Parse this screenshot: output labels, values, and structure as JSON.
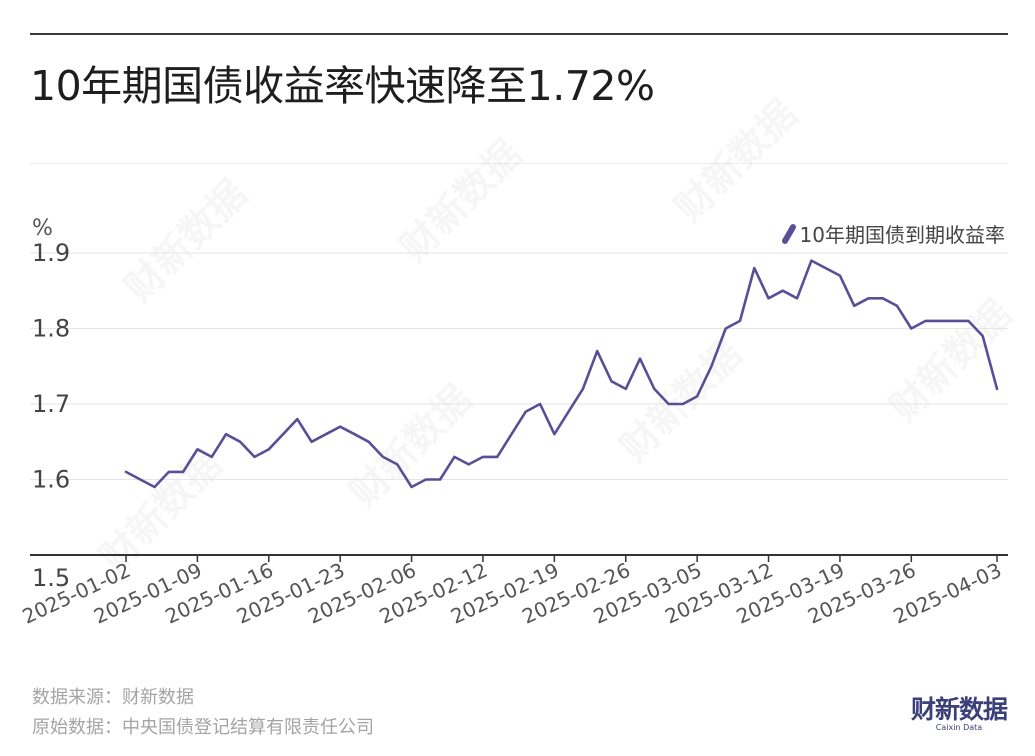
{
  "chart_data": {
    "type": "line",
    "title": "10年期国债收益率快速降至1.72%",
    "ylabel": "%",
    "xlabel": "",
    "ylim": [
      1.5,
      1.9
    ],
    "yticks": [
      1.5,
      1.6,
      1.7,
      1.8,
      1.9
    ],
    "grid": true,
    "legend_position": "top-right",
    "x_tick_labels": [
      "2025-01-02",
      "2025-01-09",
      "2025-01-16",
      "2025-01-23",
      "2025-02-06",
      "2025-02-12",
      "2025-02-19",
      "2025-02-26",
      "2025-03-05",
      "2025-03-12",
      "2025-03-19",
      "2025-03-26",
      "2025-04-03"
    ],
    "series": [
      {
        "name": "10年期国债到期收益率",
        "color": "#5a4e97",
        "x": [
          "2025-01-02",
          "2025-01-03",
          "2025-01-06",
          "2025-01-07",
          "2025-01-08",
          "2025-01-09",
          "2025-01-10",
          "2025-01-13",
          "2025-01-14",
          "2025-01-15",
          "2025-01-16",
          "2025-01-17",
          "2025-01-20",
          "2025-01-21",
          "2025-01-22",
          "2025-01-23",
          "2025-01-24",
          "2025-01-26",
          "2025-01-27",
          "2025-02-05",
          "2025-02-06",
          "2025-02-07",
          "2025-02-08",
          "2025-02-10",
          "2025-02-11",
          "2025-02-12",
          "2025-02-13",
          "2025-02-14",
          "2025-02-17",
          "2025-02-18",
          "2025-02-19",
          "2025-02-20",
          "2025-02-21",
          "2025-02-24",
          "2025-02-25",
          "2025-02-26",
          "2025-02-27",
          "2025-02-28",
          "2025-03-03",
          "2025-03-04",
          "2025-03-05",
          "2025-03-06",
          "2025-03-07",
          "2025-03-10",
          "2025-03-11",
          "2025-03-12",
          "2025-03-13",
          "2025-03-14",
          "2025-03-17",
          "2025-03-18",
          "2025-03-19",
          "2025-03-20",
          "2025-03-21",
          "2025-03-24",
          "2025-03-25",
          "2025-03-26",
          "2025-03-27",
          "2025-03-28",
          "2025-03-31",
          "2025-04-01",
          "2025-04-02",
          "2025-04-03"
        ],
        "values": [
          1.61,
          1.6,
          1.59,
          1.61,
          1.61,
          1.64,
          1.63,
          1.66,
          1.65,
          1.63,
          1.64,
          1.66,
          1.68,
          1.65,
          1.66,
          1.67,
          1.66,
          1.65,
          1.63,
          1.62,
          1.59,
          1.6,
          1.6,
          1.63,
          1.62,
          1.63,
          1.63,
          1.66,
          1.69,
          1.7,
          1.66,
          1.69,
          1.72,
          1.77,
          1.73,
          1.72,
          1.76,
          1.72,
          1.7,
          1.7,
          1.71,
          1.75,
          1.8,
          1.81,
          1.88,
          1.84,
          1.85,
          1.84,
          1.89,
          1.88,
          1.87,
          1.83,
          1.84,
          1.84,
          1.83,
          1.8,
          1.81,
          1.81,
          1.81,
          1.81,
          1.79,
          1.72
        ]
      }
    ]
  },
  "header": {
    "title": "10年期国债收益率快速降至1.72%"
  },
  "axis": {
    "unit": "%"
  },
  "legend": {
    "label": "10年期国债到期收益率"
  },
  "footer": {
    "source": "数据来源：财新数据",
    "raw_source": "原始数据：中央国债登记结算有限责任公司",
    "logo_cn": "财新数据",
    "logo_en": "Caixin Data"
  },
  "watermark": "财新数据"
}
